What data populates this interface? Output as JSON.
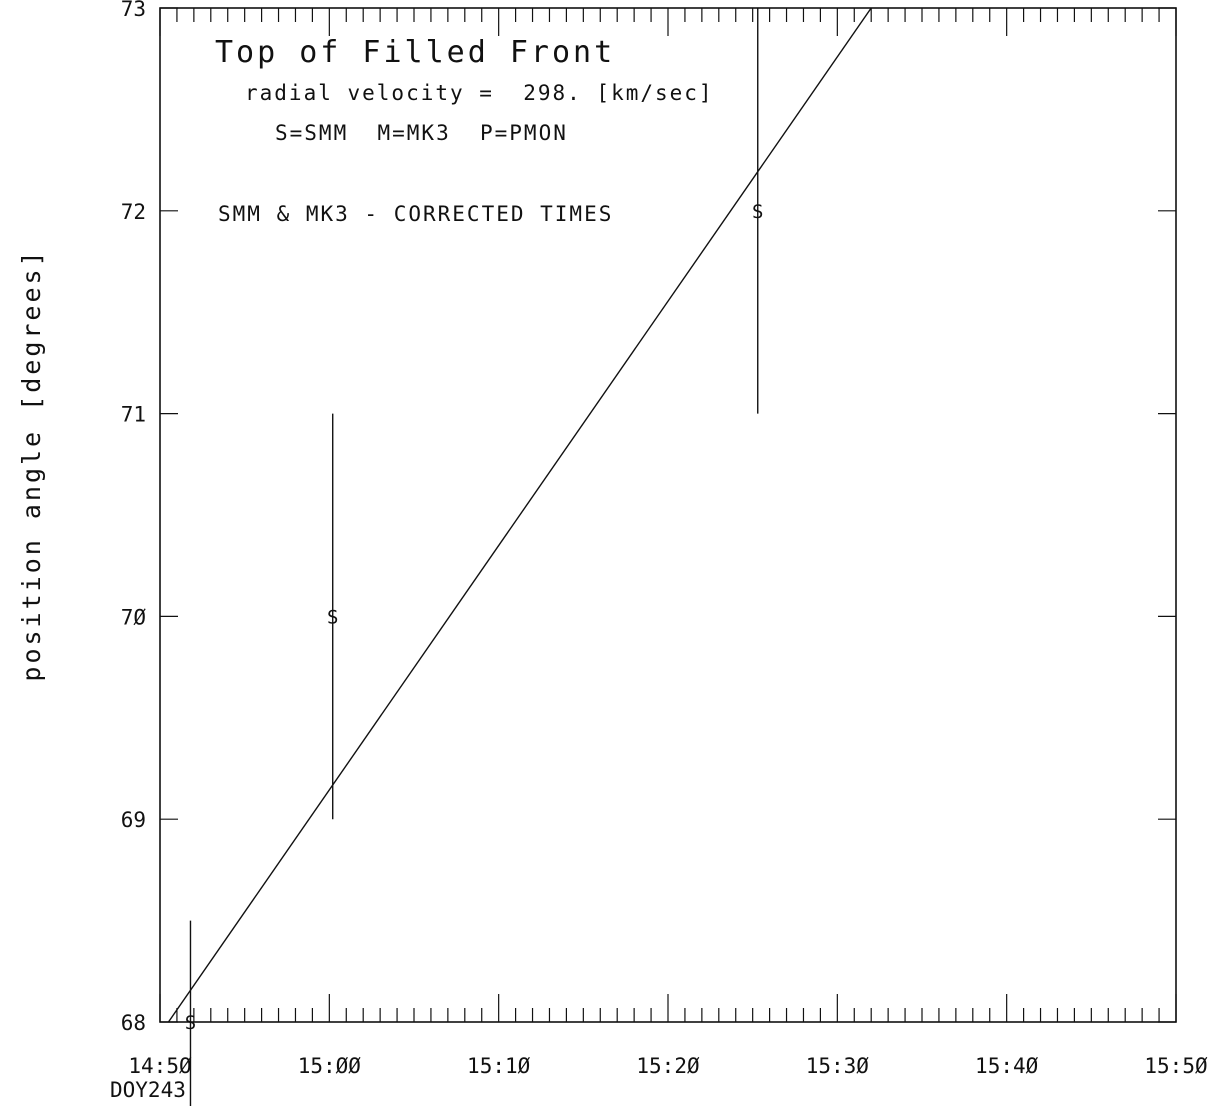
{
  "chart_data": {
    "type": "scatter",
    "title": "Top of Filled Front",
    "annotations": [
      "radial velocity =  298. [km/sec]",
      "S=SMM  M=MK3  P=PMON",
      "SMM & MK3 - CORRECTED TIMES"
    ],
    "ylabel": "position angle [degrees]",
    "xlabel": "",
    "x_unit_note": "DOY243",
    "xlim": [
      "14:50",
      "15:50"
    ],
    "ylim": [
      68,
      73
    ],
    "x_ticks": [
      "14:5Ø",
      "15:ØØ",
      "15:1Ø",
      "15:2Ø",
      "15:3Ø",
      "15:4Ø",
      "15:5Ø"
    ],
    "y_ticks": [
      "68",
      "69",
      "7Ø",
      "71",
      "72",
      "73"
    ],
    "points": [
      {
        "label": "S",
        "x": "14:51.8",
        "y": 68.0,
        "y_low": 67.5,
        "y_high": 68.5
      },
      {
        "label": "S",
        "x": "15:00.2",
        "y": 70.0,
        "y_low": 69.0,
        "y_high": 71.0
      },
      {
        "label": "S",
        "x": "15:25.3",
        "y": 72.0,
        "y_low": 71.0,
        "y_high": 73.0
      }
    ],
    "fit_line": {
      "x": [
        "14:50.5",
        "15:32.0"
      ],
      "y": [
        68.0,
        73.0
      ]
    },
    "grid": false
  }
}
